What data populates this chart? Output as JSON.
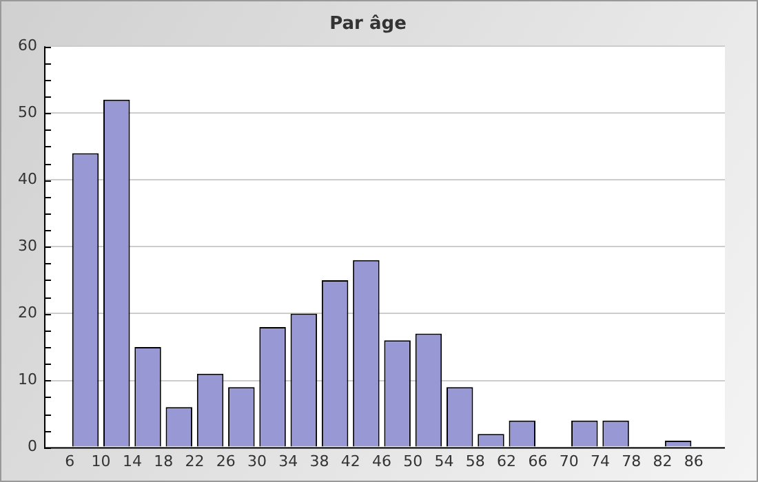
{
  "chart_data": {
    "type": "histogram",
    "title": "Par âge",
    "bins": [
      6,
      10,
      14,
      18,
      22,
      26,
      30,
      34,
      38,
      42,
      46,
      50,
      54,
      58,
      62,
      66,
      70,
      74,
      78,
      82,
      86
    ],
    "values": [
      44,
      52,
      15,
      6,
      11,
      9,
      18,
      20,
      25,
      28,
      16,
      17,
      9,
      2,
      4,
      0,
      4,
      4,
      0,
      1
    ],
    "color": "#9898d4",
    "xlim": [
      2.7,
      90
    ],
    "xticks": [
      6,
      10,
      14,
      18,
      22,
      26,
      30,
      34,
      38,
      42,
      46,
      50,
      54,
      58,
      62,
      66,
      70,
      74,
      78,
      82,
      86
    ],
    "ylim": [
      0,
      60
    ],
    "yticks": [
      0,
      {
        "value": 2.5,
        "label": null
      },
      {
        "value": 5,
        "label": null
      },
      {
        "value": 7.5,
        "label": null
      },
      10,
      {
        "value": 12.5,
        "label": null
      },
      {
        "value": 15,
        "label": null
      },
      {
        "value": 17.5,
        "label": null
      },
      20,
      {
        "value": 22.5,
        "label": null
      },
      {
        "value": 25,
        "label": null
      },
      {
        "value": 27.5,
        "label": null
      },
      30,
      {
        "value": 32.5,
        "label": null
      },
      {
        "value": 35,
        "label": null
      },
      {
        "value": 37.5,
        "label": null
      },
      40,
      {
        "value": 42.5,
        "label": null
      },
      {
        "value": 45,
        "label": null
      },
      {
        "value": 47.5,
        "label": null
      },
      50,
      {
        "value": 52.5,
        "label": null
      },
      {
        "value": 55,
        "label": null
      },
      {
        "value": 57.5,
        "label": null
      },
      60
    ],
    "grid": "y",
    "legend": false
  }
}
